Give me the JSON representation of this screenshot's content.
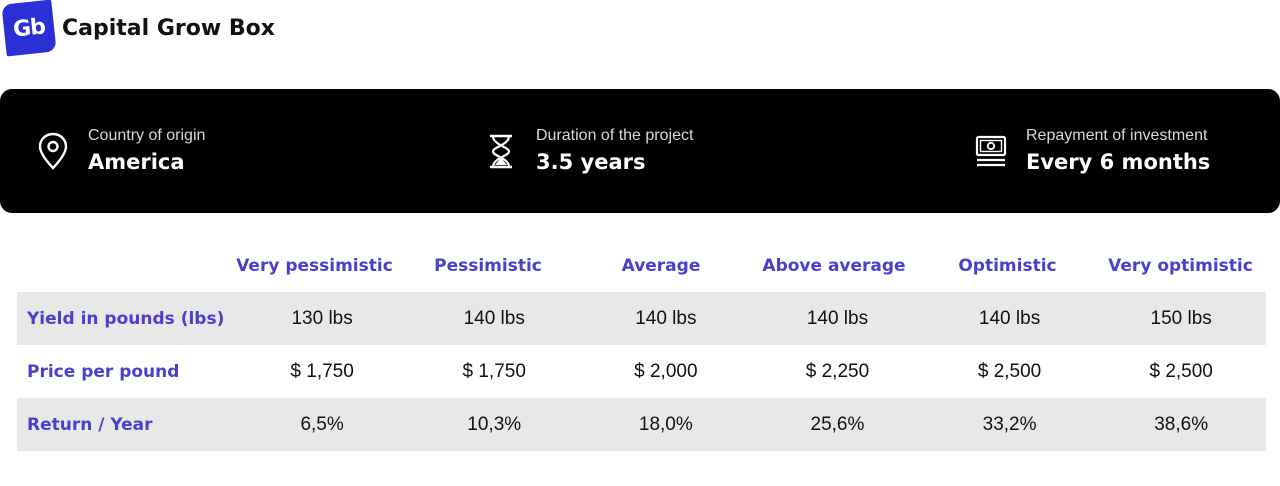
{
  "brand": {
    "logo_text": "Gb",
    "name": "Capital Grow Box",
    "color": "#2b2fd6"
  },
  "info": {
    "country": {
      "icon": "location-pin-icon",
      "label": "Country of origin",
      "value": "America"
    },
    "duration": {
      "icon": "hourglass-icon",
      "label": "Duration of the project",
      "value": "3.5 years"
    },
    "repayment": {
      "icon": "banknote-icon",
      "label": "Repayment of investment",
      "value": "Every 6 months"
    }
  },
  "table": {
    "columns": [
      "Very pessimistic",
      "Pessimistic",
      "Average",
      "Above average",
      "Optimistic",
      "Very optimistic"
    ],
    "rows": [
      {
        "label": "Yield in pounds (lbs)",
        "values": [
          "130 lbs",
          "140 lbs",
          "140 lbs",
          "140 lbs",
          "140 lbs",
          "150 lbs"
        ]
      },
      {
        "label": "Price per pound",
        "values": [
          "$ 1,750",
          "$ 1,750",
          "$ 2,000",
          "$ 2,250",
          "$ 2,500",
          "$ 2,500"
        ]
      },
      {
        "label": "Return / Year",
        "values": [
          "6,5%",
          "10,3%",
          "18,0%",
          "25,6%",
          "33,2%",
          "38,6%"
        ]
      }
    ],
    "accent_color": "#4a3fcf"
  }
}
